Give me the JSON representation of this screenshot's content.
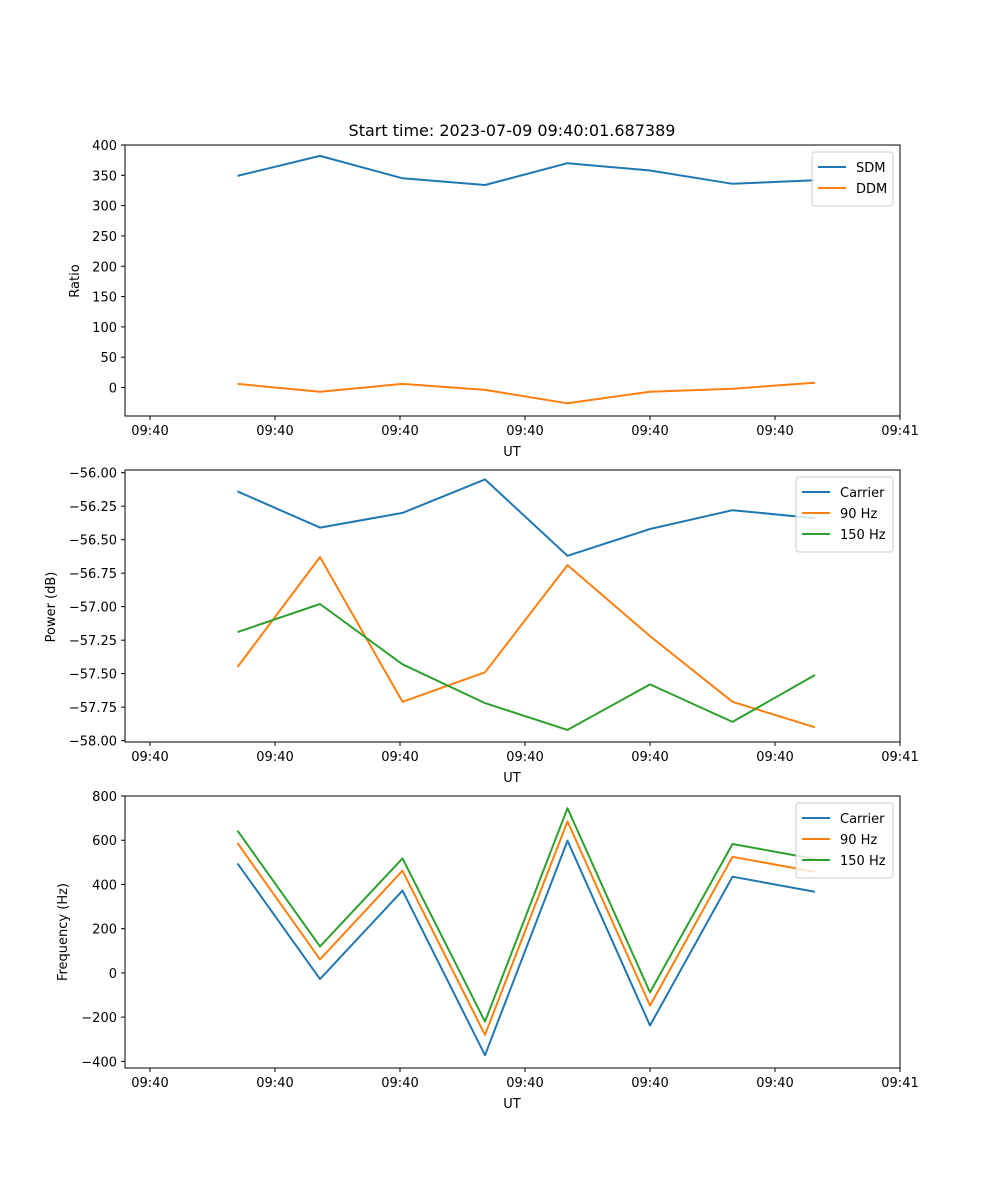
{
  "chart_data": [
    {
      "type": "line",
      "title": "Start time: 2023-07-09 09:40:01.687389",
      "xlabel": "UT",
      "ylabel": "Ratio",
      "x": [
        1.35,
        1.68,
        2.01,
        2.34,
        2.67,
        3.0,
        3.33,
        3.66
      ],
      "xlim": [
        0.9,
        4.0
      ],
      "x_ticks": [
        1.0,
        1.5,
        2.0,
        2.5,
        3.0,
        3.5,
        4.0
      ],
      "x_tick_labels": [
        "09:40",
        "09:40",
        "09:40",
        "09:40",
        "09:40",
        "09:40",
        "09:41"
      ],
      "ylim": [
        -47,
        400
      ],
      "y_ticks": [
        0,
        50,
        100,
        150,
        200,
        250,
        300,
        350,
        400
      ],
      "y_tick_labels": [
        "0",
        "50",
        "100",
        "150",
        "200",
        "250",
        "300",
        "350",
        "400"
      ],
      "legend_position": "top-right",
      "series": [
        {
          "name": "SDM",
          "color": "#1f77b4",
          "values": [
            349,
            382,
            345,
            334,
            370,
            358,
            336,
            342
          ]
        },
        {
          "name": "DDM",
          "color": "#ff7f0e",
          "values": [
            6,
            -7,
            6,
            -4,
            -26,
            -7,
            -2,
            8
          ]
        }
      ]
    },
    {
      "type": "line",
      "title": "",
      "xlabel": "UT",
      "ylabel": "Power (dB)",
      "x": [
        1.35,
        1.68,
        2.01,
        2.34,
        2.67,
        3.0,
        3.33,
        3.66
      ],
      "xlim": [
        0.9,
        4.0
      ],
      "x_ticks": [
        1.0,
        1.5,
        2.0,
        2.5,
        3.0,
        3.5,
        4.0
      ],
      "x_tick_labels": [
        "09:40",
        "09:40",
        "09:40",
        "09:40",
        "09:40",
        "09:40",
        "09:41"
      ],
      "ylim": [
        -58.01,
        -55.98
      ],
      "y_ticks": [
        -58.0,
        -57.75,
        -57.5,
        -57.25,
        -57.0,
        -56.75,
        -56.5,
        -56.25,
        -56.0
      ],
      "y_tick_labels": [
        "−58.00",
        "−57.75",
        "−57.50",
        "−57.25",
        "−57.00",
        "−56.75",
        "−56.50",
        "−56.25",
        "−56.00"
      ],
      "legend_position": "top-right",
      "series": [
        {
          "name": "Carrier",
          "color": "#1f77b4",
          "values": [
            -56.14,
            -56.41,
            -56.3,
            -56.05,
            -56.62,
            -56.42,
            -56.28,
            -56.34
          ]
        },
        {
          "name": "90 Hz",
          "color": "#ff7f0e",
          "values": [
            -57.45,
            -56.63,
            -57.71,
            -57.49,
            -56.69,
            -57.22,
            -57.71,
            -57.9
          ]
        },
        {
          "name": "150 Hz",
          "color": "#2ca02c",
          "values": [
            -57.19,
            -56.98,
            -57.43,
            -57.72,
            -57.92,
            -57.58,
            -57.86,
            -57.51
          ]
        }
      ]
    },
    {
      "type": "line",
      "title": "",
      "xlabel": "UT",
      "ylabel": "Frequency (Hz)",
      "x": [
        1.35,
        1.68,
        2.01,
        2.34,
        2.67,
        3.0,
        3.33,
        3.66
      ],
      "xlim": [
        0.9,
        4.0
      ],
      "x_ticks": [
        1.0,
        1.5,
        2.0,
        2.5,
        3.0,
        3.5,
        4.0
      ],
      "x_tick_labels": [
        "09:40",
        "09:40",
        "09:40",
        "09:40",
        "09:40",
        "09:40",
        "09:41"
      ],
      "ylim": [
        -430,
        800
      ],
      "y_ticks": [
        -400,
        -200,
        0,
        200,
        400,
        600,
        800
      ],
      "y_tick_labels": [
        "−400",
        "−200",
        "0",
        "200",
        "400",
        "600",
        "800"
      ],
      "legend_position": "top-right",
      "series": [
        {
          "name": "Carrier",
          "color": "#1f77b4",
          "values": [
            495,
            -28,
            372,
            -372,
            598,
            -238,
            435,
            367
          ]
        },
        {
          "name": "90 Hz",
          "color": "#ff7f0e",
          "values": [
            587,
            61,
            462,
            -280,
            685,
            -148,
            525,
            457
          ]
        },
        {
          "name": "150 Hz",
          "color": "#2ca02c",
          "values": [
            643,
            120,
            518,
            -220,
            745,
            -88,
            583,
            515
          ]
        }
      ]
    }
  ]
}
